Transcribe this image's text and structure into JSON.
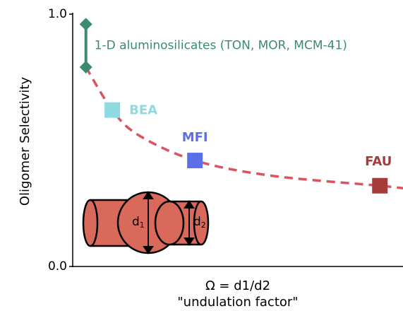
{
  "chart_data": {
    "type": "scatter",
    "ylabel": "Oligomer Selectivity",
    "xlabel": [
      "Ω = d1/d2",
      "\"undulation factor\""
    ],
    "xlim": [
      0,
      1
    ],
    "ylim": [
      0,
      1
    ],
    "yticks": [
      {
        "value": 0,
        "label": "0.0"
      },
      {
        "value": 1,
        "label": "1.0"
      }
    ],
    "trend": {
      "color": "#d9545f",
      "x": [
        0.04,
        0.12,
        0.2,
        0.37,
        0.6,
        0.93,
        1.0
      ],
      "values": [
        0.79,
        0.62,
        0.52,
        0.42,
        0.36,
        0.32,
        0.31
      ]
    },
    "series": [
      {
        "name": "1-D aluminosilicates (TON, MOR, MCM-41)",
        "color": "#3d8a72",
        "marker": "diamond",
        "x": [
          0.04,
          0.04
        ],
        "values": [
          0.96,
          0.79
        ]
      },
      {
        "name": "BEA",
        "color": "#8ddbe0",
        "marker": "square",
        "x": [
          0.12
        ],
        "values": [
          0.62
        ]
      },
      {
        "name": "MFI",
        "color": "#5b6fe8",
        "marker": "square",
        "x": [
          0.37
        ],
        "values": [
          0.42
        ]
      },
      {
        "name": "FAU",
        "color": "#a53c3c",
        "marker": "square",
        "x": [
          0.93
        ],
        "values": [
          0.32
        ]
      }
    ],
    "illustration": {
      "d1": "d",
      "d1_sub": "1",
      "d2": "d",
      "d2_sub": "2"
    }
  }
}
